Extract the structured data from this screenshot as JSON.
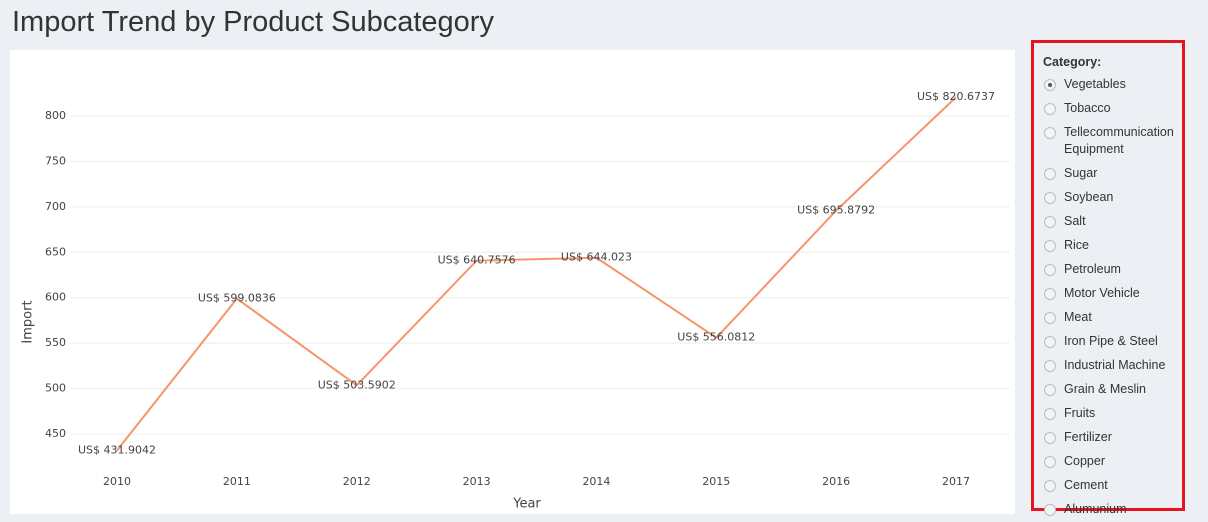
{
  "chart_data": {
    "type": "line",
    "title": "Import Trend by Product Subcategory",
    "x_label": "Year",
    "y_label": "Import",
    "categories": [
      "2010",
      "2011",
      "2012",
      "2013",
      "2014",
      "2015",
      "2016",
      "2017"
    ],
    "series": [
      {
        "name": "Import",
        "color": "#f79468",
        "values": [
          431.9042,
          599.0836,
          503.5902,
          640.7576,
          644.023,
          556.0812,
          695.8792,
          820.6737
        ],
        "value_labels": [
          "US$ 431.9042",
          "US$ 599.0836",
          "US$ 503.5902",
          "US$ 640.7576",
          "US$ 644.023",
          "US$ 556.0812",
          "US$ 695.8792",
          "US$ 820.6737"
        ]
      }
    ],
    "ylim": [
      420,
      835
    ],
    "yticks": [
      450,
      500,
      550,
      600,
      650,
      700,
      750,
      800
    ],
    "grid": true
  },
  "sidebar": {
    "label": "Category:",
    "selected": "Vegetables",
    "options": [
      "Vegetables",
      "Tobacco",
      "Tellecommunication Equipment",
      "Sugar",
      "Soybean",
      "Salt",
      "Rice",
      "Petroleum",
      "Motor Vehicle",
      "Meat",
      "Iron Pipe & Steel",
      "Industrial Machine",
      "Grain & Meslin",
      "Fruits",
      "Fertilizer",
      "Copper",
      "Cement",
      "Alumunium"
    ]
  }
}
